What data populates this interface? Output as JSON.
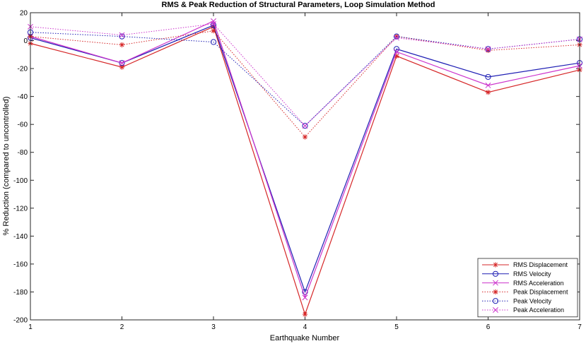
{
  "chart_data": {
    "type": "line",
    "title": "RMS & Peak Reduction of Structural Parameters, Loop Simulation Method",
    "xlabel": "Earthquake Number",
    "ylabel": "% Reduction (compared to uncontrolled)",
    "xlim": [
      1,
      7
    ],
    "ylim": [
      -200,
      20
    ],
    "xticks": [
      1,
      2,
      3,
      4,
      5,
      6,
      7
    ],
    "yticks": [
      20,
      0,
      -20,
      -40,
      -60,
      -80,
      -100,
      -120,
      -140,
      -160,
      -180,
      -200
    ],
    "grid": false,
    "legend_position": "bottom-right",
    "x": [
      1,
      2,
      3,
      4,
      5,
      6,
      7
    ],
    "series": [
      {
        "name": "RMS Displacement",
        "color": "#d62728",
        "line": "solid",
        "marker": "asterisk",
        "values": [
          -2,
          -19,
          10,
          -196,
          -11,
          -37,
          -21
        ]
      },
      {
        "name": "RMS Velocity",
        "color": "#1f1fb4",
        "line": "solid",
        "marker": "circle",
        "values": [
          2,
          -16,
          11,
          -180,
          -6,
          -26,
          -16
        ]
      },
      {
        "name": "RMS Acceleration",
        "color": "#cc33cc",
        "line": "solid",
        "marker": "x",
        "values": [
          3,
          -16,
          14,
          -184,
          -8,
          -32,
          -18
        ]
      },
      {
        "name": "Peak Displacement",
        "color": "#d62728",
        "line": "dotted",
        "marker": "asterisk",
        "values": [
          3,
          -3,
          7,
          -69,
          3,
          -7,
          -3
        ]
      },
      {
        "name": "Peak Velocity",
        "color": "#1f1fb4",
        "line": "dotted",
        "marker": "circle",
        "values": [
          6,
          3,
          -1,
          -61,
          3,
          -6,
          1
        ]
      },
      {
        "name": "Peak Acceleration",
        "color": "#cc33cc",
        "line": "dotted",
        "marker": "x",
        "values": [
          10,
          4,
          12,
          -61,
          2,
          -6,
          1
        ]
      }
    ]
  }
}
